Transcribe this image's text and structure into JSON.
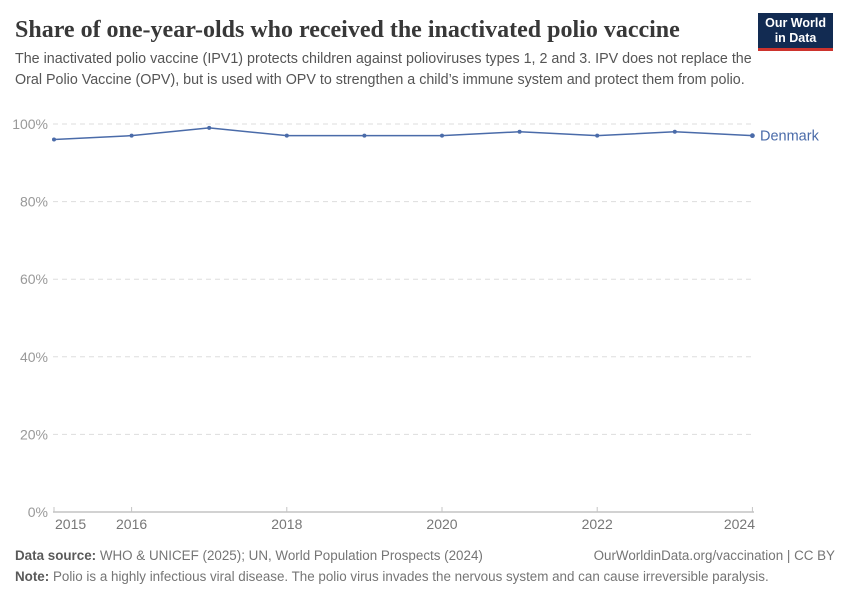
{
  "header": {
    "title": "Share of one-year-olds who received the inactivated polio vaccine",
    "subtitle": "The inactivated polio vaccine (IPV1) protects children against polioviruses types 1, 2 and 3. IPV does not replace the Oral Polio Vaccine (OPV), but is used with OPV to strengthen a child’s immune system and protect them from polio.",
    "logo": {
      "line1": "Our World",
      "line2": "in Data",
      "bg_color": "#122b52",
      "accent_color": "#cd332d"
    }
  },
  "chart_data": {
    "type": "line",
    "title": "Share of one-year-olds who received the inactivated polio vaccine",
    "x": [
      2015,
      2016,
      2017,
      2018,
      2019,
      2020,
      2021,
      2022,
      2023,
      2024
    ],
    "series": [
      {
        "name": "Denmark",
        "color": "#4a6ba9",
        "values": [
          96,
          97,
          99,
          97,
          97,
          97,
          98,
          97,
          98,
          97
        ]
      }
    ],
    "unit": "%",
    "ylim": [
      0,
      100
    ],
    "yticks": [
      0,
      20,
      40,
      60,
      80,
      100
    ],
    "ytick_labels": [
      "0%",
      "20%",
      "40%",
      "60%",
      "80%",
      "100%"
    ],
    "xtick_years": [
      2015,
      2016,
      2018,
      2020,
      2022,
      2024
    ],
    "xtick_labels": [
      "2015",
      "2016",
      "2018",
      "2020",
      "2022",
      "2024"
    ],
    "grid": "horizontal-dashed",
    "legend": "line-end-label"
  },
  "theme": {
    "grid_color": "#dddddd",
    "axis_color": "#a5a5a5",
    "tick_mark_color": "#c4c4c4",
    "ytick_text_color": "#999999",
    "xtick_text_color": "#777777"
  },
  "footer": {
    "datasource_label": "Data source:",
    "datasource_text": " WHO & UNICEF (2025); UN, World Population Prospects (2024)",
    "license_text": "OurWorldinData.org/vaccination | CC BY",
    "note_label": "Note:",
    "note_text": " Polio is a highly infectious viral disease. The polio virus invades the nervous system and can cause irreversible paralysis."
  }
}
